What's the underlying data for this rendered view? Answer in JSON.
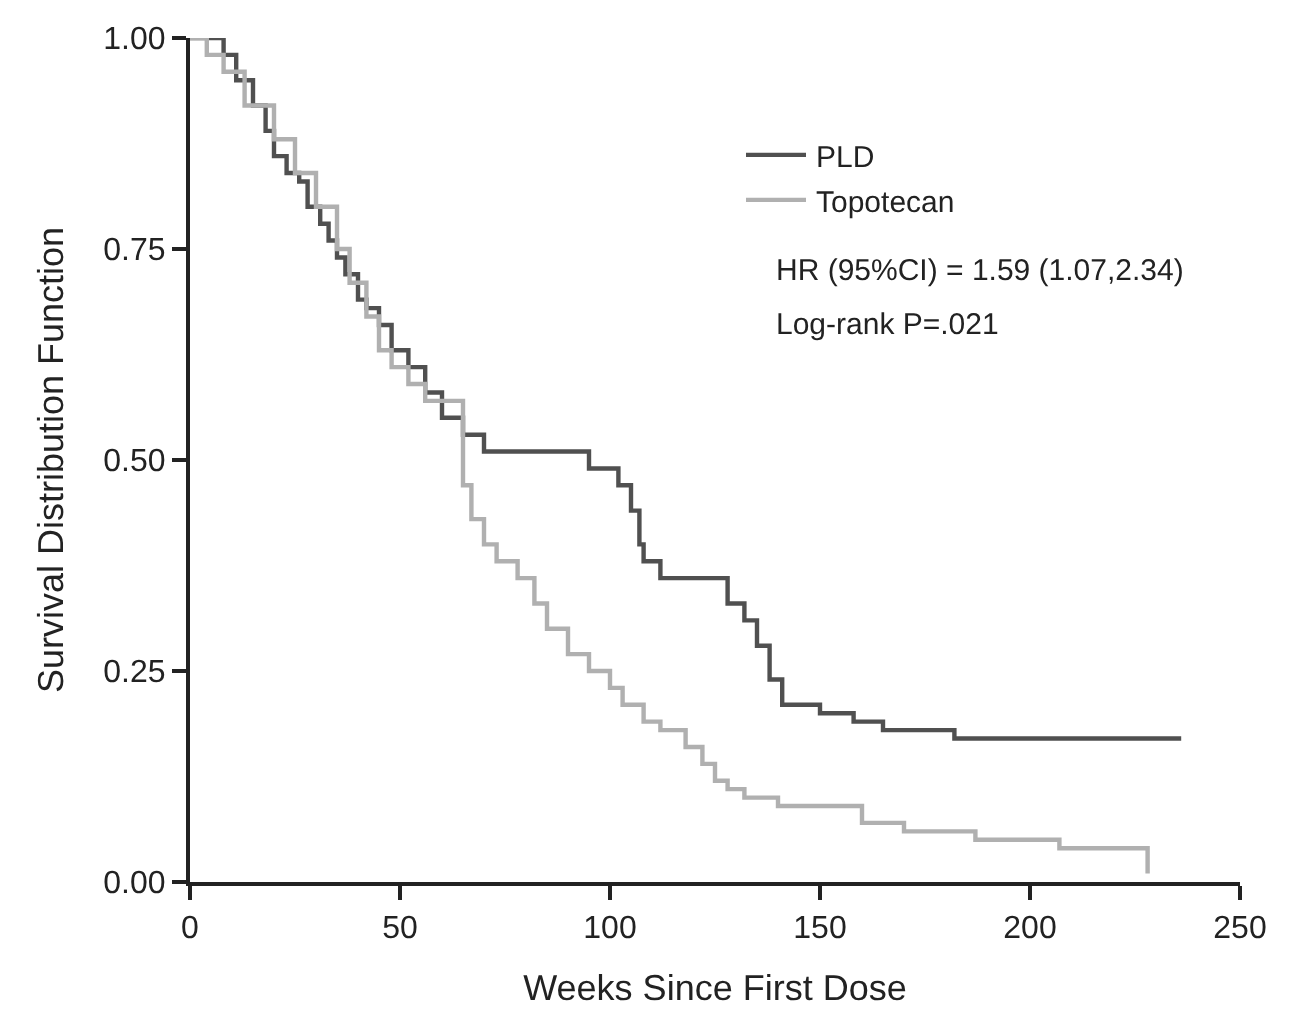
{
  "chart_data": {
    "type": "step",
    "xlabel": "Weeks Since First Dose",
    "ylabel": "Survival Distribution Function",
    "xlim": [
      0,
      250
    ],
    "xticks": [
      0,
      50,
      100,
      150,
      200,
      250
    ],
    "ylim": [
      0,
      1
    ],
    "yticks": [
      {
        "value": 0,
        "label": "0.00"
      },
      {
        "value": 0.25,
        "label": "0.25"
      },
      {
        "value": 0.5,
        "label": "0.50"
      },
      {
        "value": 0.75,
        "label": "0.75"
      },
      {
        "value": 1,
        "label": "1.00"
      }
    ],
    "grid": false,
    "legend": "top right",
    "marker": "none",
    "line_style": "solid",
    "annotations": [
      "HR (95%CI) = 1.59 (1.07,2.34)",
      "Log-rank P=.021"
    ],
    "series": [
      {
        "name": "PLD",
        "color": "#505050",
        "x": [
          0,
          8,
          11,
          15,
          18,
          20,
          23,
          26,
          28,
          31,
          33,
          35,
          37,
          40,
          42,
          45,
          48,
          52,
          56,
          60,
          65,
          70,
          78,
          95,
          100,
          102,
          105,
          107,
          108,
          112,
          128,
          132,
          135,
          138,
          141,
          150,
          158,
          165,
          182,
          236
        ],
        "values": [
          1,
          0.98,
          0.95,
          0.92,
          0.89,
          0.86,
          0.84,
          0.83,
          0.8,
          0.78,
          0.76,
          0.74,
          0.72,
          0.69,
          0.68,
          0.66,
          0.63,
          0.61,
          0.58,
          0.55,
          0.53,
          0.51,
          0.51,
          0.49,
          0.49,
          0.47,
          0.44,
          0.4,
          0.38,
          0.36,
          0.33,
          0.31,
          0.28,
          0.24,
          0.21,
          0.2,
          0.19,
          0.18,
          0.17,
          0.17
        ]
      },
      {
        "name": "Topotecan",
        "color": "#b0b0b0",
        "x": [
          0,
          4,
          8,
          13,
          20,
          25,
          30,
          35,
          38,
          42,
          45,
          48,
          52,
          56,
          60,
          65,
          67,
          70,
          73,
          78,
          82,
          85,
          90,
          95,
          100,
          103,
          108,
          112,
          118,
          122,
          125,
          128,
          132,
          140,
          160,
          170,
          187,
          207,
          228,
          228
        ],
        "values": [
          1,
          0.98,
          0.96,
          0.92,
          0.88,
          0.84,
          0.8,
          0.75,
          0.71,
          0.67,
          0.63,
          0.61,
          0.59,
          0.57,
          0.57,
          0.47,
          0.43,
          0.4,
          0.38,
          0.36,
          0.33,
          0.3,
          0.27,
          0.25,
          0.23,
          0.21,
          0.19,
          0.18,
          0.16,
          0.14,
          0.12,
          0.11,
          0.1,
          0.09,
          0.07,
          0.06,
          0.05,
          0.04,
          0.04,
          0.01
        ]
      }
    ]
  }
}
